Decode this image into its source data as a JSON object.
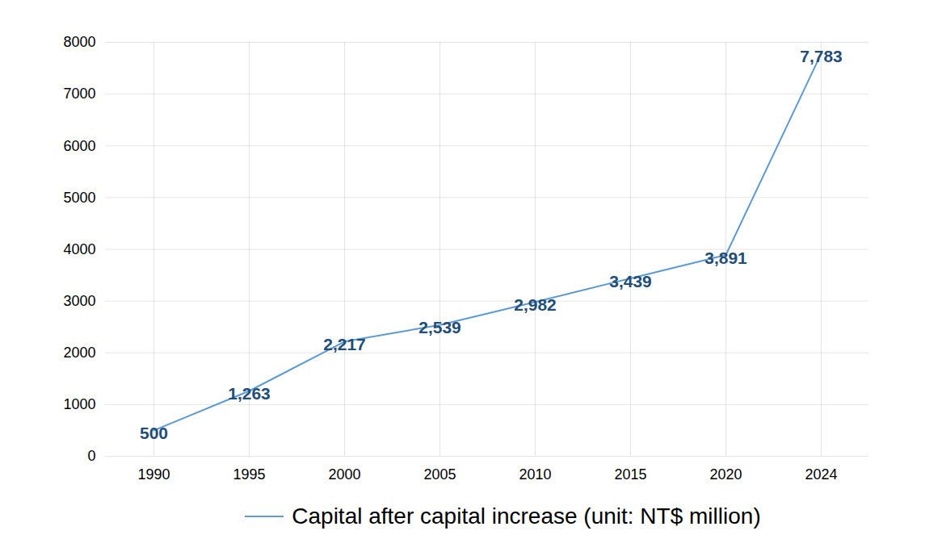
{
  "chart_data": {
    "type": "line",
    "categories": [
      "1990",
      "1995",
      "2000",
      "2005",
      "2010",
      "2015",
      "2020",
      "2024"
    ],
    "series": [
      {
        "name": "Capital after capital increase (unit: NT$ million)",
        "color": "#5b9bd5",
        "values": [
          500,
          1263,
          2217,
          2539,
          2982,
          3439,
          3891,
          7783
        ],
        "value_labels": [
          "500",
          "1,263",
          "2,217",
          "2,539",
          "2,982",
          "3,439",
          "3,891",
          "7,783"
        ]
      }
    ],
    "ylim": [
      0,
      8000
    ],
    "yticks": [
      0,
      1000,
      2000,
      3000,
      4000,
      5000,
      6000,
      7000,
      8000
    ],
    "grid": true,
    "data_labels": true,
    "legend": "bottom"
  }
}
